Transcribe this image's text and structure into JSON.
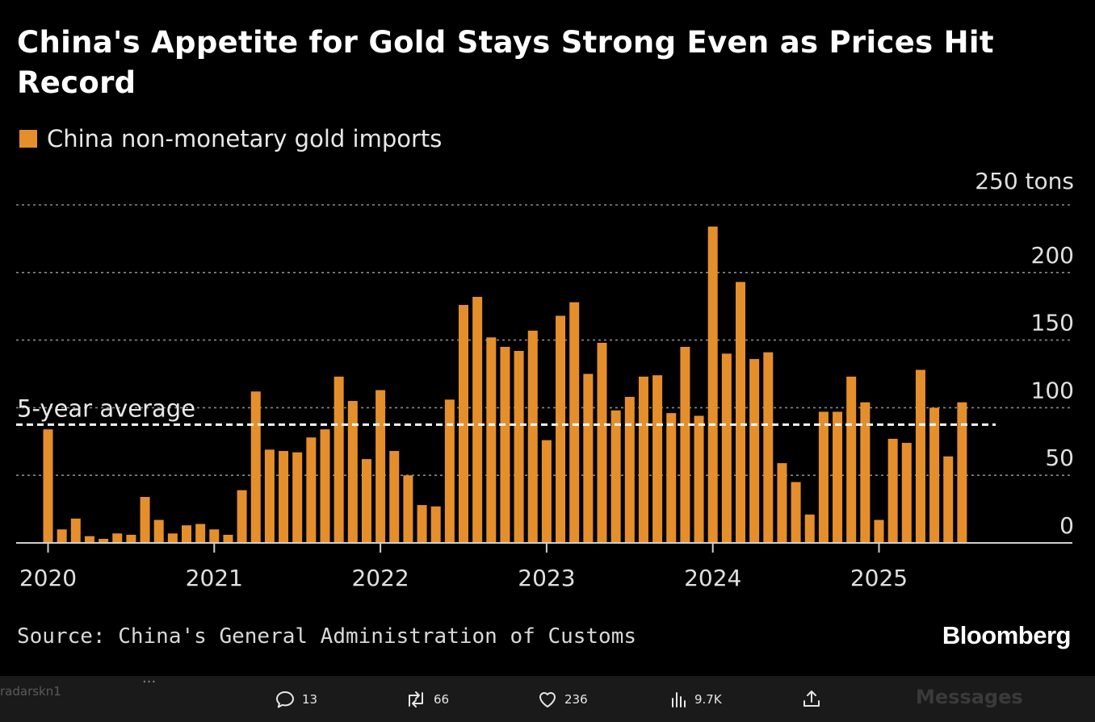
{
  "chart_data": {
    "type": "bar",
    "title": "China's Appetite for Gold Stays Strong Even as Prices Hit Record",
    "legend": [
      "China non-monetary gold imports"
    ],
    "y_unit_label": "250 tons",
    "ylim": [
      0,
      250
    ],
    "y_ticks": [
      0,
      50,
      100,
      150,
      200
    ],
    "x_ticks": [
      "2020",
      "2021",
      "2022",
      "2023",
      "2024",
      "2025"
    ],
    "grid": true,
    "reference_line": {
      "label": "5-year average",
      "value": 87.5
    },
    "bar_color": "#e58f2c",
    "series": [
      {
        "name": "China non-monetary gold imports",
        "x": [
          "2020-01",
          "2020-02",
          "2020-03",
          "2020-04",
          "2020-05",
          "2020-06",
          "2020-07",
          "2020-08",
          "2020-09",
          "2020-10",
          "2020-11",
          "2020-12",
          "2021-01",
          "2021-02",
          "2021-03",
          "2021-04",
          "2021-05",
          "2021-06",
          "2021-07",
          "2021-08",
          "2021-09",
          "2021-10",
          "2021-11",
          "2021-12",
          "2022-01",
          "2022-02",
          "2022-03",
          "2022-04",
          "2022-05",
          "2022-06",
          "2022-07",
          "2022-08",
          "2022-09",
          "2022-10",
          "2022-11",
          "2022-12",
          "2023-01",
          "2023-02",
          "2023-03",
          "2023-04",
          "2023-05",
          "2023-06",
          "2023-07",
          "2023-08",
          "2023-09",
          "2023-10",
          "2023-11",
          "2023-12",
          "2024-01",
          "2024-02",
          "2024-03",
          "2024-04",
          "2024-05",
          "2024-06",
          "2024-07",
          "2024-08",
          "2024-09",
          "2024-10",
          "2024-11",
          "2024-12",
          "2025-01",
          "2025-02",
          "2025-03",
          "2025-04",
          "2025-05",
          "2025-06",
          "2025-07"
        ],
        "values": [
          84,
          10,
          18,
          5,
          3,
          7,
          6,
          34,
          17,
          7,
          13,
          14,
          10,
          6,
          39,
          112,
          69,
          68,
          67,
          78,
          84,
          123,
          105,
          62,
          113,
          68,
          50,
          28,
          27,
          106,
          176,
          182,
          152,
          145,
          142,
          157,
          76,
          168,
          178,
          125,
          148,
          98,
          108,
          123,
          124,
          96,
          145,
          94,
          234,
          140,
          193,
          136,
          141,
          59,
          45,
          21,
          97,
          97,
          123,
          104,
          17,
          77,
          74,
          128,
          100,
          64,
          104
        ]
      }
    ]
  },
  "source": "Source: China's General Administration of Customs",
  "brand": "Bloomberg",
  "actions": {
    "replies": "13",
    "reposts": "66",
    "likes": "236",
    "views": "9.7K"
  },
  "ghost": {
    "left": "radarskn1",
    "dots": "...",
    "right": "Messages"
  }
}
